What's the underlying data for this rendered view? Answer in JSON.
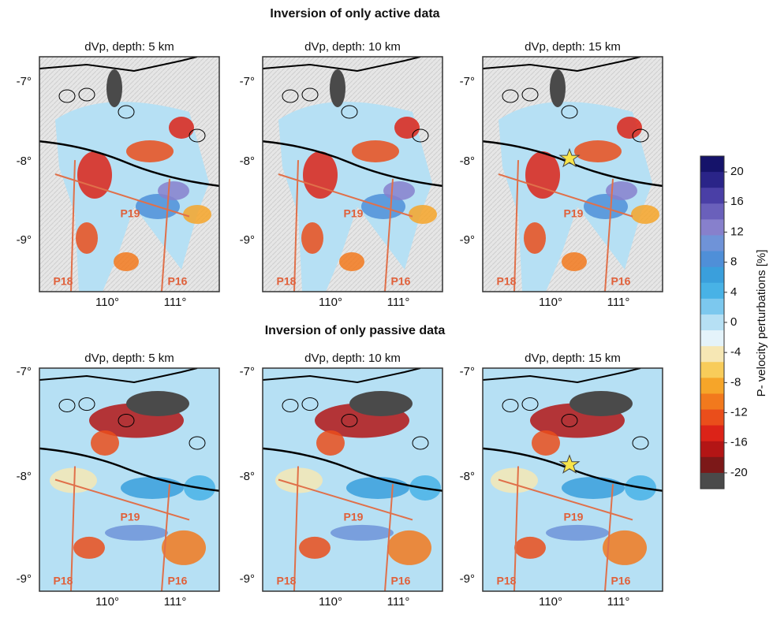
{
  "rows": [
    {
      "title": "Inversion of only active data",
      "panels": [
        {
          "title": "dVp, depth: 5 km"
        },
        {
          "title": "dVp, depth: 10 km"
        },
        {
          "title": "dVp, depth: 15 km"
        }
      ]
    },
    {
      "title": "Inversion of only passive data",
      "panels": [
        {
          "title": "dVp, depth: 5 km"
        },
        {
          "title": "dVp, depth: 10 km"
        },
        {
          "title": "dVp, depth: 15 km"
        }
      ]
    }
  ],
  "latitude_labels": [
    "-7°",
    "-8°",
    "-9°"
  ],
  "longitude_labels": [
    "110°",
    "111°"
  ],
  "profiles": [
    "P18",
    "P19",
    "P16"
  ],
  "colorbar": {
    "label": "P- velocity perturbations [%]",
    "ticks": [
      20,
      16,
      12,
      8,
      4,
      0,
      -4,
      -8,
      -12,
      -16,
      -20
    ],
    "colors": [
      "#15136a",
      "#2a2488",
      "#4a3fa6",
      "#6a60bb",
      "#8780cc",
      "#6f93d8",
      "#4f8fd8",
      "#3a9fdc",
      "#48b2e6",
      "#7cc8ee",
      "#b6e0f4",
      "#e4f3fa",
      "#f6e7b4",
      "#f8cc5a",
      "#f6a529",
      "#f2791d",
      "#ea4e1b",
      "#dc2318",
      "#b31515",
      "#7c1818",
      "#4a4a4a"
    ]
  }
}
